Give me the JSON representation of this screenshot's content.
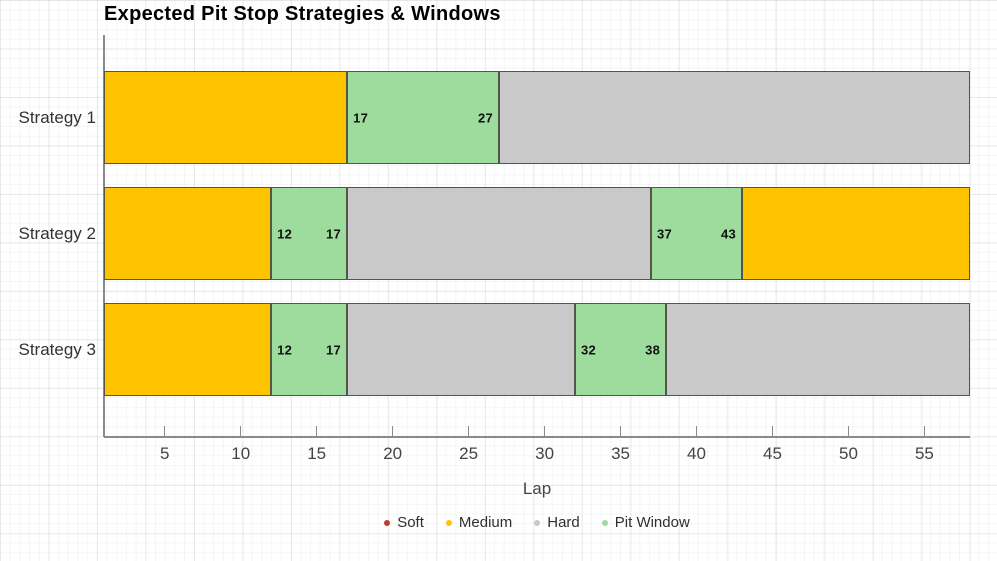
{
  "chart_data": {
    "type": "bar",
    "orientation": "horizontal",
    "stacked": true,
    "title": "Expected Pit Stop Strategies & Windows",
    "xlabel": "Lap",
    "categories": [
      "Strategy 1",
      "Strategy 2",
      "Strategy 3"
    ],
    "lap_min": 1,
    "lap_max": 58,
    "x_ticks": [
      5,
      10,
      15,
      20,
      25,
      30,
      35,
      40,
      45,
      50,
      55
    ],
    "grid": true,
    "legend_position": "bottom-center",
    "colors": {
      "soft": "#c13b2e",
      "medium": "#ffc400",
      "hard": "#c9c9c9",
      "pit_window": "#9edc9e",
      "segment_border": "#54564a"
    },
    "legend": [
      {
        "label": "Soft",
        "color_key": "soft"
      },
      {
        "label": "Medium",
        "color_key": "medium"
      },
      {
        "label": "Hard",
        "color_key": "hard"
      },
      {
        "label": "Pit Window",
        "color_key": "pit_window"
      }
    ],
    "rows": [
      {
        "label": "Strategy 1",
        "segments": [
          {
            "compound": "medium",
            "start_lap": 1,
            "end_lap": 17
          },
          {
            "compound": "pit_window",
            "start_lap": 17,
            "end_lap": 27,
            "start_label": "17",
            "end_label": "27"
          },
          {
            "compound": "hard",
            "start_lap": 27,
            "end_lap": 58
          }
        ]
      },
      {
        "label": "Strategy 2",
        "segments": [
          {
            "compound": "medium",
            "start_lap": 1,
            "end_lap": 12
          },
          {
            "compound": "pit_window",
            "start_lap": 12,
            "end_lap": 17,
            "start_label": "12",
            "end_label": "17"
          },
          {
            "compound": "hard",
            "start_lap": 17,
            "end_lap": 37
          },
          {
            "compound": "pit_window",
            "start_lap": 37,
            "end_lap": 43,
            "start_label": "37",
            "end_label": "43"
          },
          {
            "compound": "medium",
            "start_lap": 43,
            "end_lap": 58
          }
        ]
      },
      {
        "label": "Strategy 3",
        "segments": [
          {
            "compound": "medium",
            "start_lap": 1,
            "end_lap": 12
          },
          {
            "compound": "pit_window",
            "start_lap": 12,
            "end_lap": 17,
            "start_label": "12",
            "end_label": "17"
          },
          {
            "compound": "hard",
            "start_lap": 17,
            "end_lap": 32
          },
          {
            "compound": "pit_window",
            "start_lap": 32,
            "end_lap": 38,
            "start_label": "32",
            "end_label": "38"
          },
          {
            "compound": "hard",
            "start_lap": 38,
            "end_lap": 58
          }
        ]
      }
    ]
  }
}
